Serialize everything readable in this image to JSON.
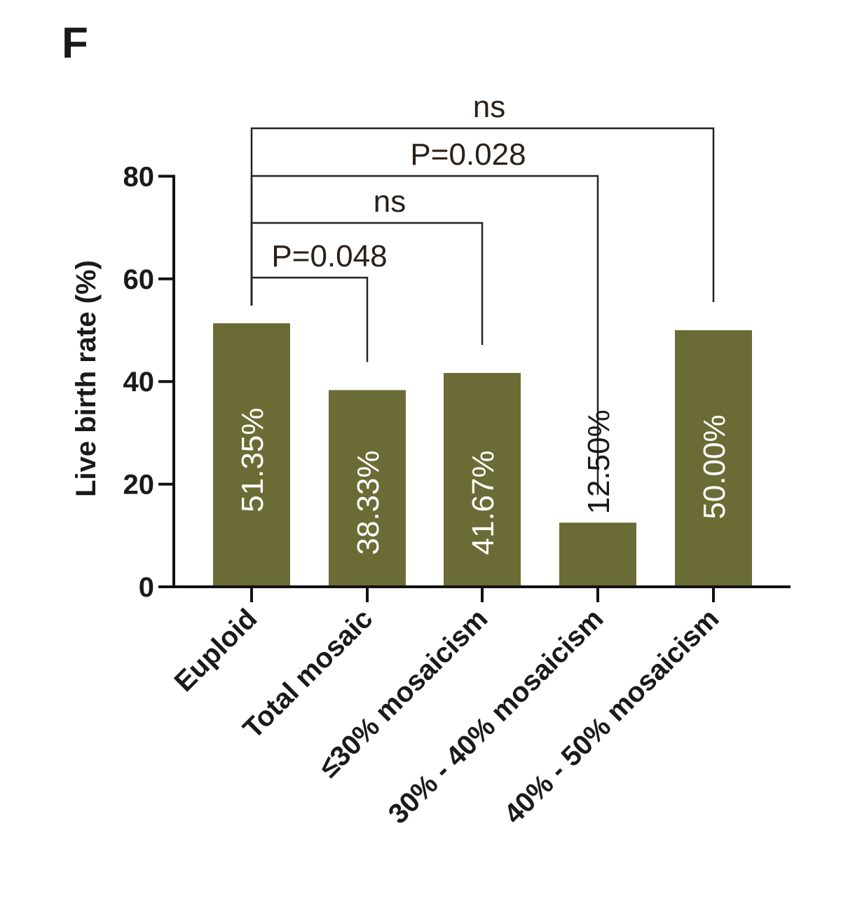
{
  "panel_label": "F",
  "chart_data": {
    "type": "bar",
    "title": "",
    "xlabel": "",
    "ylabel": "Live birth rate (%)",
    "ylim": [
      0,
      80
    ],
    "yticks": [
      0,
      20,
      40,
      60,
      80
    ],
    "categories": [
      "Euploid",
      "Total mosaic",
      "≤30% mosaicism",
      "30% - 40% mosaicism",
      "40% - 50% mosaicism"
    ],
    "values": [
      51.35,
      38.33,
      41.67,
      12.5,
      50.0
    ],
    "data_labels": [
      "51.35%",
      "38.33%",
      "41.67%",
      "12.50%",
      "50.00%"
    ],
    "bar_color": "#6b6b35",
    "grid": false,
    "legend": "none",
    "comparisons": [
      {
        "from": 0,
        "to": 1,
        "label": "P=0.048"
      },
      {
        "from": 0,
        "to": 2,
        "label": "ns"
      },
      {
        "from": 0,
        "to": 3,
        "label": "P=0.028"
      },
      {
        "from": 0,
        "to": 4,
        "label": "ns"
      }
    ]
  }
}
